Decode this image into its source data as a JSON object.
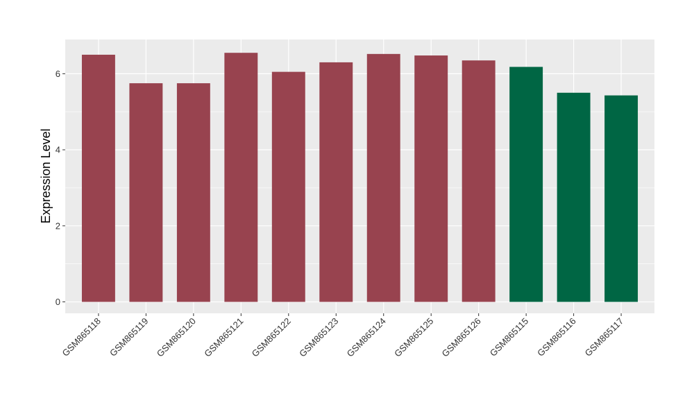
{
  "chart_data": {
    "type": "bar",
    "title": "",
    "xlabel": "",
    "ylabel": "Expression Level",
    "ylim": [
      -0.3,
      6.9
    ],
    "yticks": [
      0,
      2,
      4,
      6
    ],
    "grid": true,
    "legend": "none",
    "categories": [
      "GSM865118",
      "GSM865119",
      "GSM865120",
      "GSM865121",
      "GSM865122",
      "GSM865123",
      "GSM865124",
      "GSM865125",
      "GSM865126",
      "GSM865115",
      "GSM865116",
      "GSM865117"
    ],
    "values": [
      6.5,
      5.75,
      5.75,
      6.55,
      6.05,
      6.3,
      6.52,
      6.48,
      6.35,
      6.18,
      5.5,
      5.43
    ],
    "bar_colors": [
      "#98434F",
      "#98434F",
      "#98434F",
      "#98434F",
      "#98434F",
      "#98434F",
      "#98434F",
      "#98434F",
      "#98434F",
      "#006644",
      "#006644",
      "#006644"
    ],
    "panel_background": "#EBEBEB",
    "gridline_color": "#FFFFFF"
  }
}
